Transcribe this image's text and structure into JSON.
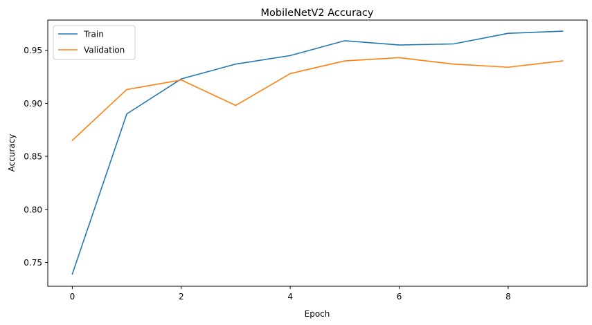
{
  "chart_data": {
    "type": "line",
    "title": "MobileNetV2 Accuracy",
    "xlabel": "Epoch",
    "ylabel": "Accuracy",
    "x": [
      0,
      1,
      2,
      3,
      4,
      5,
      6,
      7,
      8,
      9
    ],
    "xlim": [
      -0.45,
      9.45
    ],
    "ylim": [
      0.7275,
      0.9785
    ],
    "xticks": [
      0,
      2,
      4,
      6,
      8
    ],
    "xtick_labels": [
      "0",
      "2",
      "4",
      "6",
      "8"
    ],
    "yticks": [
      0.75,
      0.8,
      0.85,
      0.9,
      0.95
    ],
    "ytick_labels": [
      "0.75",
      "0.80",
      "0.85",
      "0.90",
      "0.95"
    ],
    "grid": false,
    "legend_position": "upper-left",
    "series": [
      {
        "name": "Train",
        "color": "#1f77b4",
        "values": [
          0.739,
          0.89,
          0.923,
          0.937,
          0.945,
          0.959,
          0.955,
          0.956,
          0.966,
          0.968
        ]
      },
      {
        "name": "Validation",
        "color": "#ff7f0e",
        "values": [
          0.865,
          0.913,
          0.922,
          0.898,
          0.928,
          0.94,
          0.943,
          0.937,
          0.934,
          0.94
        ]
      }
    ]
  }
}
